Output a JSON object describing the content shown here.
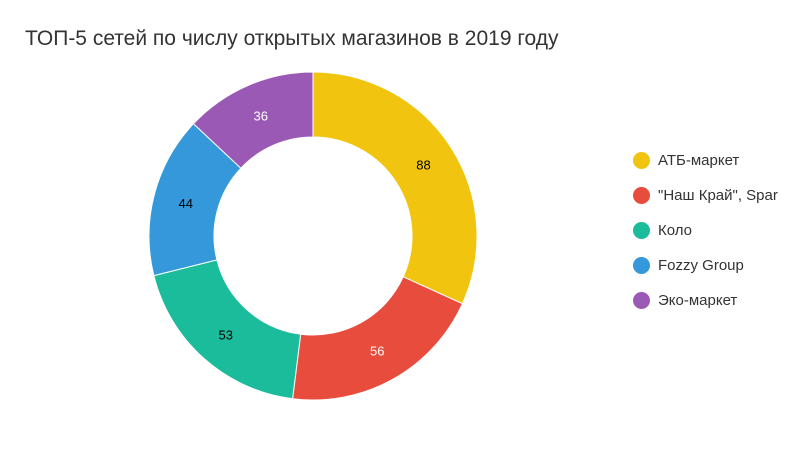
{
  "chart_data": {
    "type": "pie",
    "variant": "donut",
    "title": "ТОП-5 сетей по числу открытых магазинов в 2019 году",
    "categories": [
      "АТБ-маркет",
      "\"Наш Край\", Spar",
      "Коло",
      "Fozzy Group",
      "Эко-маркет"
    ],
    "values": [
      88,
      56,
      53,
      44,
      36
    ],
    "colors": [
      "#F1C40F",
      "#E74C3C",
      "#1ABC9C",
      "#3498DB",
      "#9B59B6"
    ],
    "label_colors": [
      "#000000",
      "#ffffff",
      "#000000",
      "#000000",
      "#ffffff"
    ],
    "legend_position": "right"
  }
}
